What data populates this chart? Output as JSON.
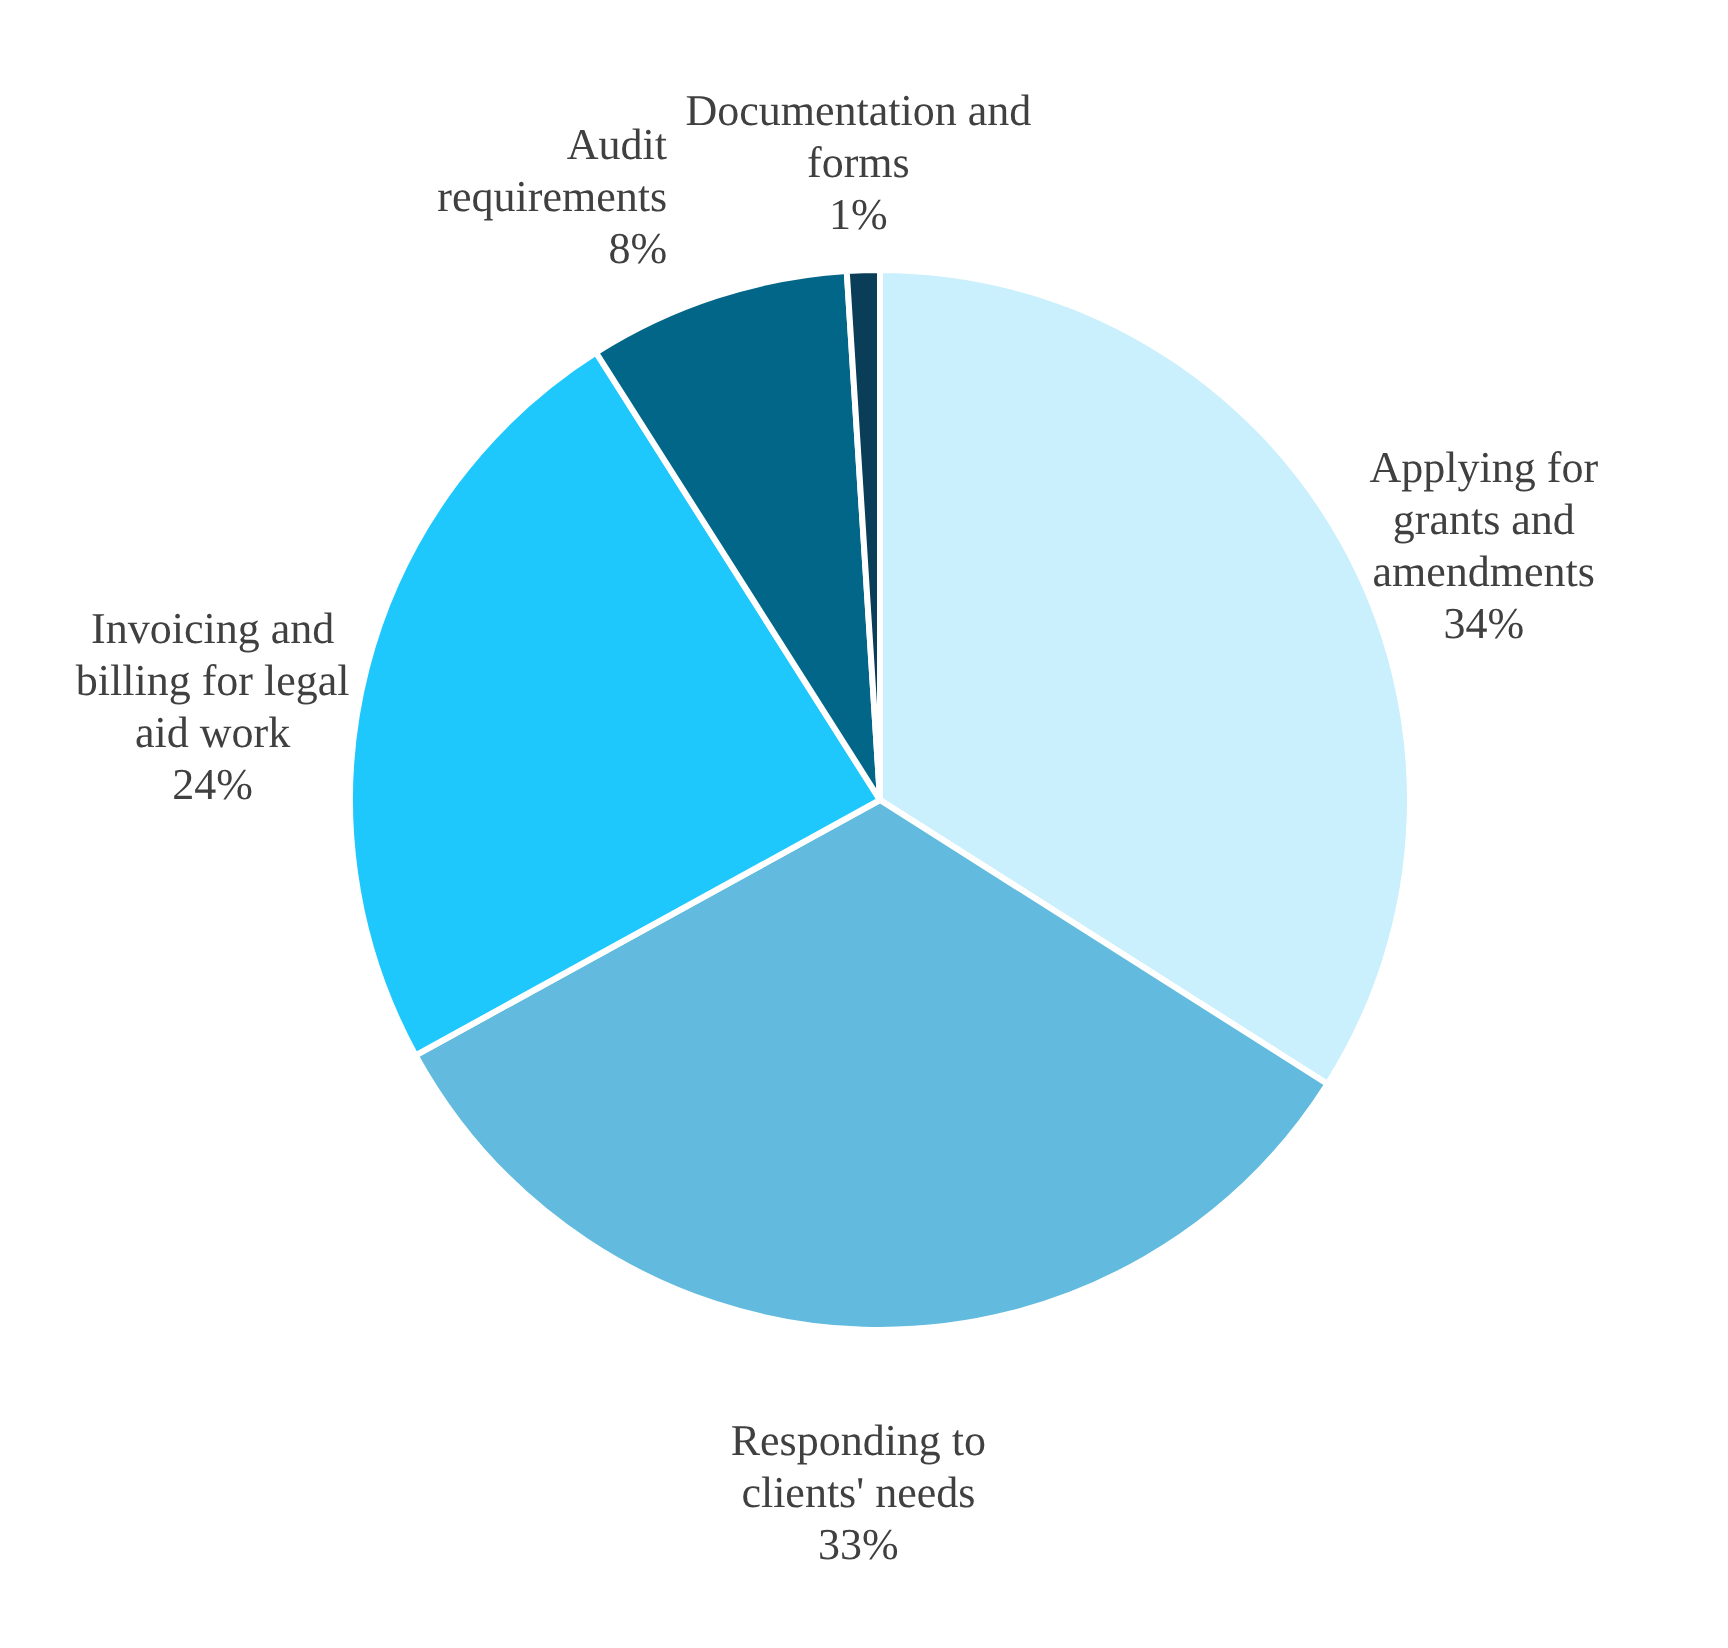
{
  "chart_data": {
    "type": "pie",
    "categories": [
      "Applying for grants and amendments",
      "Responding to clients' needs",
      "Invoicing and billing for legal aid work",
      "Audit requirements",
      "Documentation and forms"
    ],
    "values": [
      34,
      33,
      24,
      8,
      1
    ],
    "colors": [
      "#c9f0fc",
      "#62bbde",
      "#1ec8fc",
      "#026688",
      "#0a3d57"
    ],
    "value_labels": [
      "34%",
      "33%",
      "24%",
      "8%",
      "1%"
    ]
  }
}
